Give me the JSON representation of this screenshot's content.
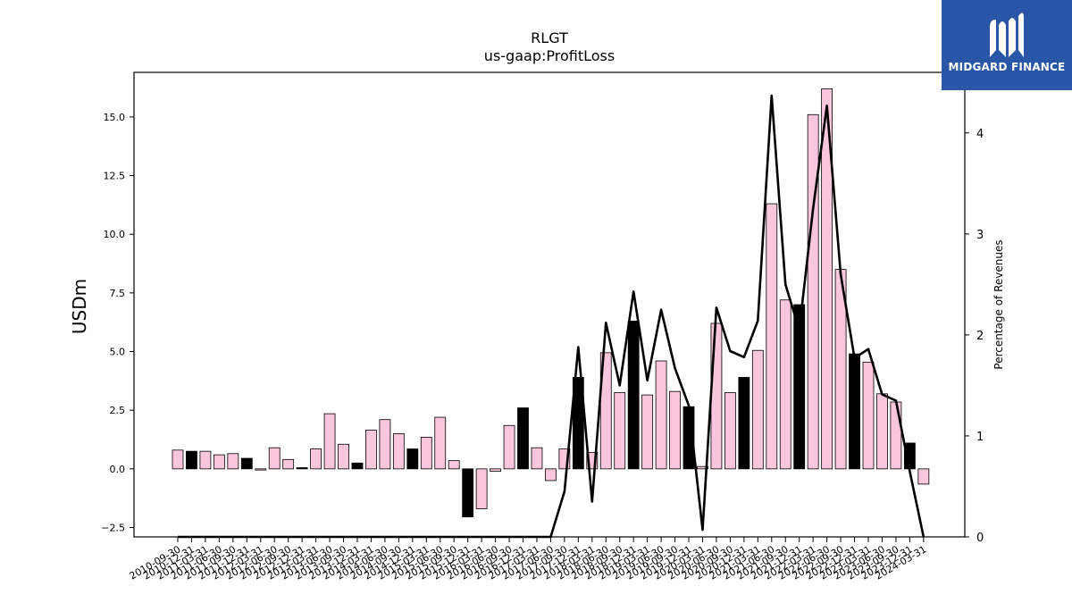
{
  "brand": {
    "name": "MIDGARD FINANCE",
    "bg_color": "#2a56a8"
  },
  "chart_data": {
    "type": "bar",
    "title": "RLGT",
    "subtitle": "us-gaap:ProfitLoss",
    "ylabel": "USDm",
    "y2label": "Percentage of Revenues",
    "ylim": [
      -2.9,
      16.9
    ],
    "y2lim": [
      0,
      4.6
    ],
    "yticks": [
      -2.5,
      0.0,
      2.5,
      5.0,
      7.5,
      10.0,
      12.5,
      15.0
    ],
    "y2ticks": [
      0,
      1,
      2,
      3,
      4
    ],
    "colors": {
      "fiscal_year_end": "#000000",
      "quarter": "#f9c6dc",
      "line": "#000000"
    },
    "categories": [
      "2010-09-30",
      "2010-12-31",
      "2011-03-31",
      "2011-06-30",
      "2011-09-30",
      "2011-12-31",
      "2012-03-31",
      "2012-06-30",
      "2012-09-30",
      "2012-12-31",
      "2013-03-31",
      "2013-06-30",
      "2013-09-30",
      "2013-12-31",
      "2014-03-31",
      "2014-06-30",
      "2014-09-30",
      "2014-12-31",
      "2015-03-31",
      "2015-06-30",
      "2015-09-30",
      "2015-12-31",
      "2016-03-31",
      "2016-06-30",
      "2016-09-30",
      "2016-12-31",
      "2017-03-31",
      "2017-06-30",
      "2017-09-30",
      "2017-12-31",
      "2018-03-31",
      "2018-06-30",
      "2018-09-30",
      "2018-12-31",
      "2019-03-31",
      "2019-06-30",
      "2019-09-30",
      "2019-12-31",
      "2020-03-31",
      "2020-06-30",
      "2020-09-30",
      "2020-12-31",
      "2021-03-31",
      "2021-06-30",
      "2021-09-30",
      "2021-12-31",
      "2022-03-31",
      "2022-06-30",
      "2022-09-30",
      "2022-12-31",
      "2023-03-31",
      "2023-06-30",
      "2023-09-30",
      "2023-12-31",
      "2024-03-31"
    ],
    "values": [
      0.8,
      0.75,
      0.75,
      0.6,
      0.65,
      0.45,
      -0.05,
      0.9,
      0.4,
      0.05,
      0.85,
      2.35,
      1.05,
      0.25,
      1.65,
      2.1,
      1.5,
      0.85,
      1.35,
      2.2,
      0.35,
      -2.05,
      -1.7,
      -0.1,
      1.85,
      2.6,
      0.9,
      -0.5,
      0.85,
      3.9,
      0.7,
      4.95,
      3.25,
      6.3,
      3.15,
      4.6,
      3.3,
      2.65,
      0.1,
      6.2,
      3.25,
      3.9,
      5.05,
      11.3,
      7.2,
      7.0,
      15.1,
      16.2,
      8.5,
      4.9,
      4.55,
      3.2,
      2.85,
      1.1,
      -0.65
    ],
    "fiscal_year_end": [
      false,
      true,
      false,
      false,
      false,
      true,
      false,
      false,
      false,
      true,
      false,
      false,
      false,
      true,
      false,
      false,
      false,
      true,
      false,
      false,
      false,
      true,
      false,
      false,
      false,
      true,
      false,
      false,
      false,
      true,
      false,
      false,
      false,
      true,
      false,
      false,
      false,
      true,
      false,
      false,
      false,
      true,
      false,
      false,
      false,
      true,
      false,
      false,
      false,
      true,
      false,
      false,
      false,
      true,
      false
    ],
    "line_series": {
      "name": "Percentage of Revenues",
      "values": [
        0,
        0,
        0,
        0,
        0,
        0,
        0,
        0,
        0,
        0,
        0,
        0,
        0,
        0,
        0,
        0,
        0,
        0,
        0,
        0,
        0,
        0,
        0,
        0,
        0,
        0,
        0,
        0,
        0.45,
        1.88,
        0.35,
        2.12,
        1.5,
        2.43,
        1.55,
        2.25,
        1.67,
        1.3,
        0.07,
        2.27,
        1.84,
        1.78,
        2.14,
        4.37,
        2.5,
        2.05,
        3.25,
        4.27,
        2.6,
        1.77,
        1.86,
        1.41,
        1.35,
        0.65,
        -0.05
      ]
    }
  }
}
